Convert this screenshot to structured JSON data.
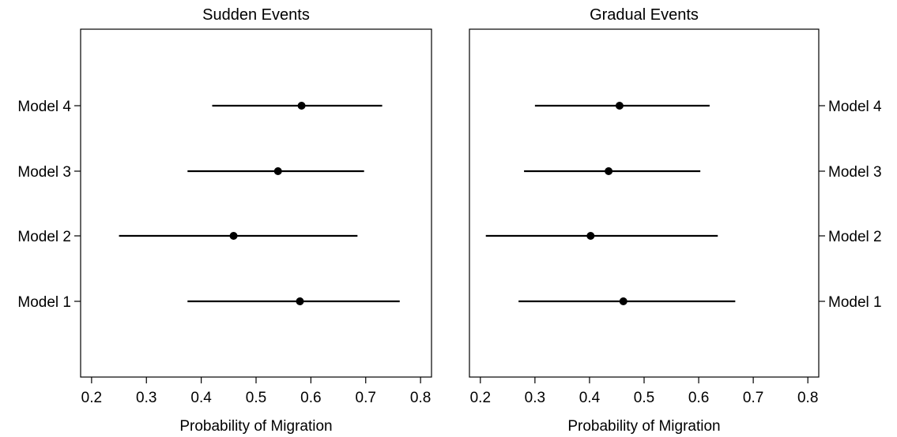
{
  "chart_data": [
    {
      "type": "scatter",
      "title": "Sudden Events",
      "xlabel": "Probability of Migration",
      "ylabel": "",
      "xlim": [
        0.18,
        0.82
      ],
      "xticks": [
        "0.2",
        "0.3",
        "0.4",
        "0.5",
        "0.6",
        "0.7",
        "0.8"
      ],
      "yaxis_side": "left",
      "categories": [
        "Model 4",
        "Model 3",
        "Model 2",
        "Model 1"
      ],
      "estimates": [
        0.583,
        0.54,
        0.459,
        0.58
      ],
      "ci_low": [
        0.42,
        0.375,
        0.25,
        0.375
      ],
      "ci_high": [
        0.73,
        0.697,
        0.685,
        0.762
      ],
      "grid": false,
      "legend": "none"
    },
    {
      "type": "scatter",
      "title": "Gradual Events",
      "xlabel": "Probability of Migration",
      "ylabel": "",
      "xlim": [
        0.18,
        0.82
      ],
      "xticks": [
        "0.2",
        "0.3",
        "0.4",
        "0.5",
        "0.6",
        "0.7",
        "0.8"
      ],
      "yaxis_side": "right",
      "categories": [
        "Model 4",
        "Model 3",
        "Model 2",
        "Model 1"
      ],
      "estimates": [
        0.455,
        0.435,
        0.402,
        0.462
      ],
      "ci_low": [
        0.3,
        0.28,
        0.21,
        0.27
      ],
      "ci_high": [
        0.62,
        0.603,
        0.635,
        0.667
      ],
      "grid": false,
      "legend": "none"
    }
  ]
}
